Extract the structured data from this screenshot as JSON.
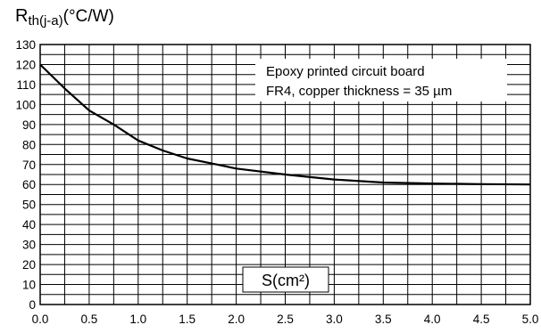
{
  "chart_data": {
    "type": "line",
    "ylabel": {
      "symbol": "R",
      "subscript": "th(j-a)",
      "unit": "(°C/W)"
    },
    "xlabel": "S(cm²)",
    "annotation": [
      "Epoxy printed circuit board",
      "FR4, copper thickness = 35 µm"
    ],
    "xlim": [
      0,
      5
    ],
    "ylim": [
      0,
      130
    ],
    "x_ticks": [
      "0.0",
      "0.5",
      "1.0",
      "1.5",
      "2.0",
      "2.5",
      "3.0",
      "3.5",
      "4.0",
      "4.5",
      "5.0"
    ],
    "y_ticks": [
      "0",
      "10",
      "20",
      "30",
      "40",
      "50",
      "60",
      "70",
      "80",
      "90",
      "100",
      "110",
      "120",
      "130"
    ],
    "grid": true,
    "series": [
      {
        "x": [
          0.0,
          0.25,
          0.5,
          0.75,
          1.0,
          1.25,
          1.5,
          1.75,
          2.0,
          2.5,
          3.0,
          3.5,
          4.0,
          4.5,
          5.0
        ],
        "values": [
          120,
          108,
          97,
          90,
          82,
          77,
          73,
          70.5,
          68,
          65,
          62.5,
          61,
          60.5,
          60.2,
          60
        ]
      }
    ],
    "line_color": "#000000"
  }
}
